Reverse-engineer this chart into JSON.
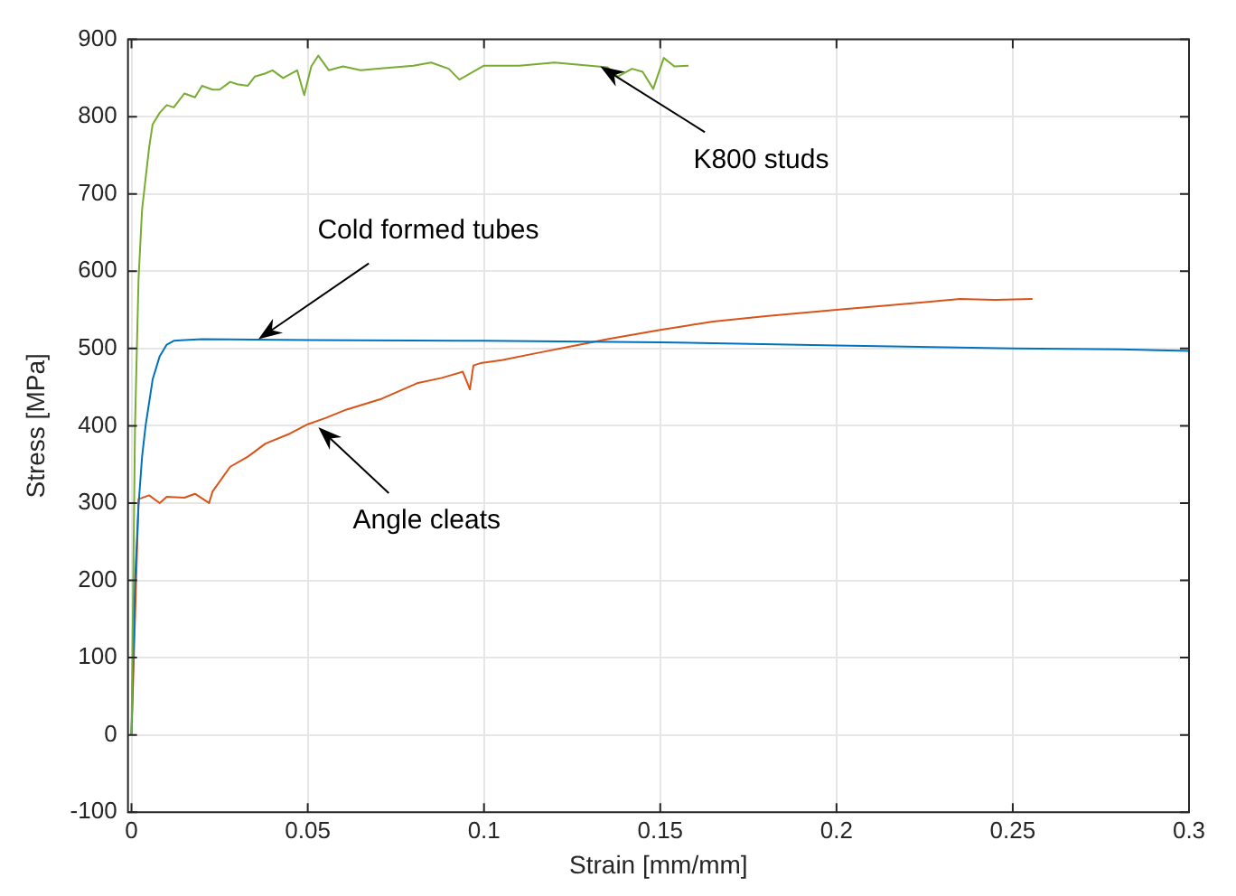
{
  "chart_data": {
    "type": "line",
    "xlabel": "Strain [mm/mm]",
    "ylabel": "Stress [MPa]",
    "xlim": [
      -0.001,
      0.3
    ],
    "xticks": [
      0,
      0.05,
      0.1,
      0.15,
      0.2,
      0.25,
      0.3
    ],
    "ylim": [
      -100,
      900
    ],
    "yticks": [
      -100,
      0,
      100,
      200,
      300,
      400,
      500,
      600,
      700,
      800,
      900
    ],
    "grid": true,
    "legend": false,
    "marker": "none",
    "line_style": "solid",
    "series": [
      {
        "color": "#77ac30",
        "x": [
          0,
          0.001,
          0.002,
          0.003,
          0.004,
          0.005,
          0.006,
          0.008,
          0.01,
          0.012,
          0.015,
          0.018,
          0.02,
          0.023,
          0.025,
          0.028,
          0.03,
          0.033,
          0.035,
          0.038,
          0.04,
          0.043,
          0.045,
          0.047,
          0.049,
          0.051,
          0.053,
          0.056,
          0.06,
          0.065,
          0.07,
          0.08,
          0.085,
          0.09,
          0.093,
          0.1,
          0.11,
          0.12,
          0.13,
          0.135,
          0.138,
          0.142,
          0.145,
          0.148,
          0.151,
          0.154,
          0.158
        ],
        "values": [
          0,
          400,
          590,
          680,
          720,
          760,
          790,
          805,
          815,
          812,
          830,
          825,
          840,
          835,
          835,
          845,
          842,
          840,
          852,
          856,
          860,
          850,
          855,
          860,
          828,
          865,
          879,
          860,
          865,
          860,
          862,
          866,
          870,
          862,
          848,
          866,
          866,
          870,
          866,
          864,
          852,
          862,
          858,
          836,
          876,
          865,
          866
        ]
      },
      {
        "color": "#0072bd",
        "x": [
          0,
          0.001,
          0.002,
          0.003,
          0.004,
          0.006,
          0.008,
          0.01,
          0.012,
          0.015,
          0.02,
          0.05,
          0.1,
          0.15,
          0.2,
          0.25,
          0.28,
          0.3
        ],
        "values": [
          0,
          200,
          297,
          360,
          400,
          460,
          490,
          505,
          510,
          511,
          512,
          511,
          510,
          508,
          504,
          500,
          499,
          497
        ]
      },
      {
        "color": "#d95319",
        "x": [
          0,
          0.001,
          0.002,
          0.005,
          0.008,
          0.01,
          0.015,
          0.018,
          0.022,
          0.023,
          0.028,
          0.033,
          0.038,
          0.045,
          0.05,
          0.055,
          0.061,
          0.066,
          0.071,
          0.076,
          0.081,
          0.088,
          0.094,
          0.096,
          0.097,
          0.099,
          0.105,
          0.116,
          0.125,
          0.135,
          0.15,
          0.165,
          0.18,
          0.2,
          0.215,
          0.235,
          0.245,
          0.2556
        ],
        "values": [
          0,
          150,
          305,
          310,
          300,
          308,
          307,
          312,
          300,
          315,
          347,
          360,
          377,
          390,
          402,
          410,
          421,
          428,
          435,
          445,
          455,
          462,
          470,
          447,
          478,
          481,
          485,
          495,
          503,
          512,
          524,
          535,
          542,
          550,
          556,
          564,
          563,
          564
        ]
      }
    ],
    "annotations": [
      {
        "text": "K800 studs",
        "x": 0.133,
        "y": 865
      },
      {
        "text": "Cold formed tubes",
        "x": 0.036,
        "y": 512
      },
      {
        "text": "Angle cleats",
        "x": 0.053,
        "y": 398
      }
    ]
  }
}
